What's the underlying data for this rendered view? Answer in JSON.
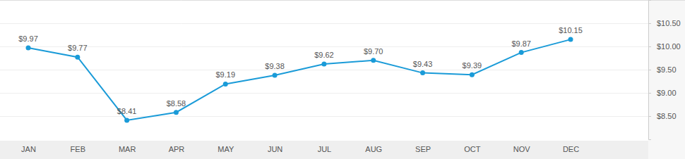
{
  "chart_data": {
    "type": "line",
    "categories": [
      "JAN",
      "FEB",
      "MAR",
      "APR",
      "MAY",
      "JUN",
      "JUL",
      "AUG",
      "SEP",
      "OCT",
      "NOV",
      "DEC"
    ],
    "values": [
      9.97,
      9.77,
      8.41,
      8.58,
      9.19,
      9.38,
      9.62,
      9.7,
      9.43,
      9.39,
      9.87,
      10.15
    ],
    "value_labels": [
      "$9.97",
      "$9.77",
      "$8.41",
      "$8.58",
      "$9.19",
      "$9.38",
      "$9.62",
      "$9.70",
      "$9.43",
      "$9.39",
      "$9.87",
      "$10.15"
    ],
    "color": "#1a9bd8",
    "ylim": [
      8.0,
      11.0
    ],
    "yticks": [
      {
        "value": 8.5,
        "label": "$8.50"
      },
      {
        "value": 9.0,
        "label": "$9.00"
      },
      {
        "value": 9.5,
        "label": "$9.50"
      },
      {
        "value": 10.0,
        "label": "$10.00"
      },
      {
        "value": 10.5,
        "label": "$10.50"
      }
    ],
    "grid": true,
    "data_labels": true,
    "marker": "circle"
  }
}
